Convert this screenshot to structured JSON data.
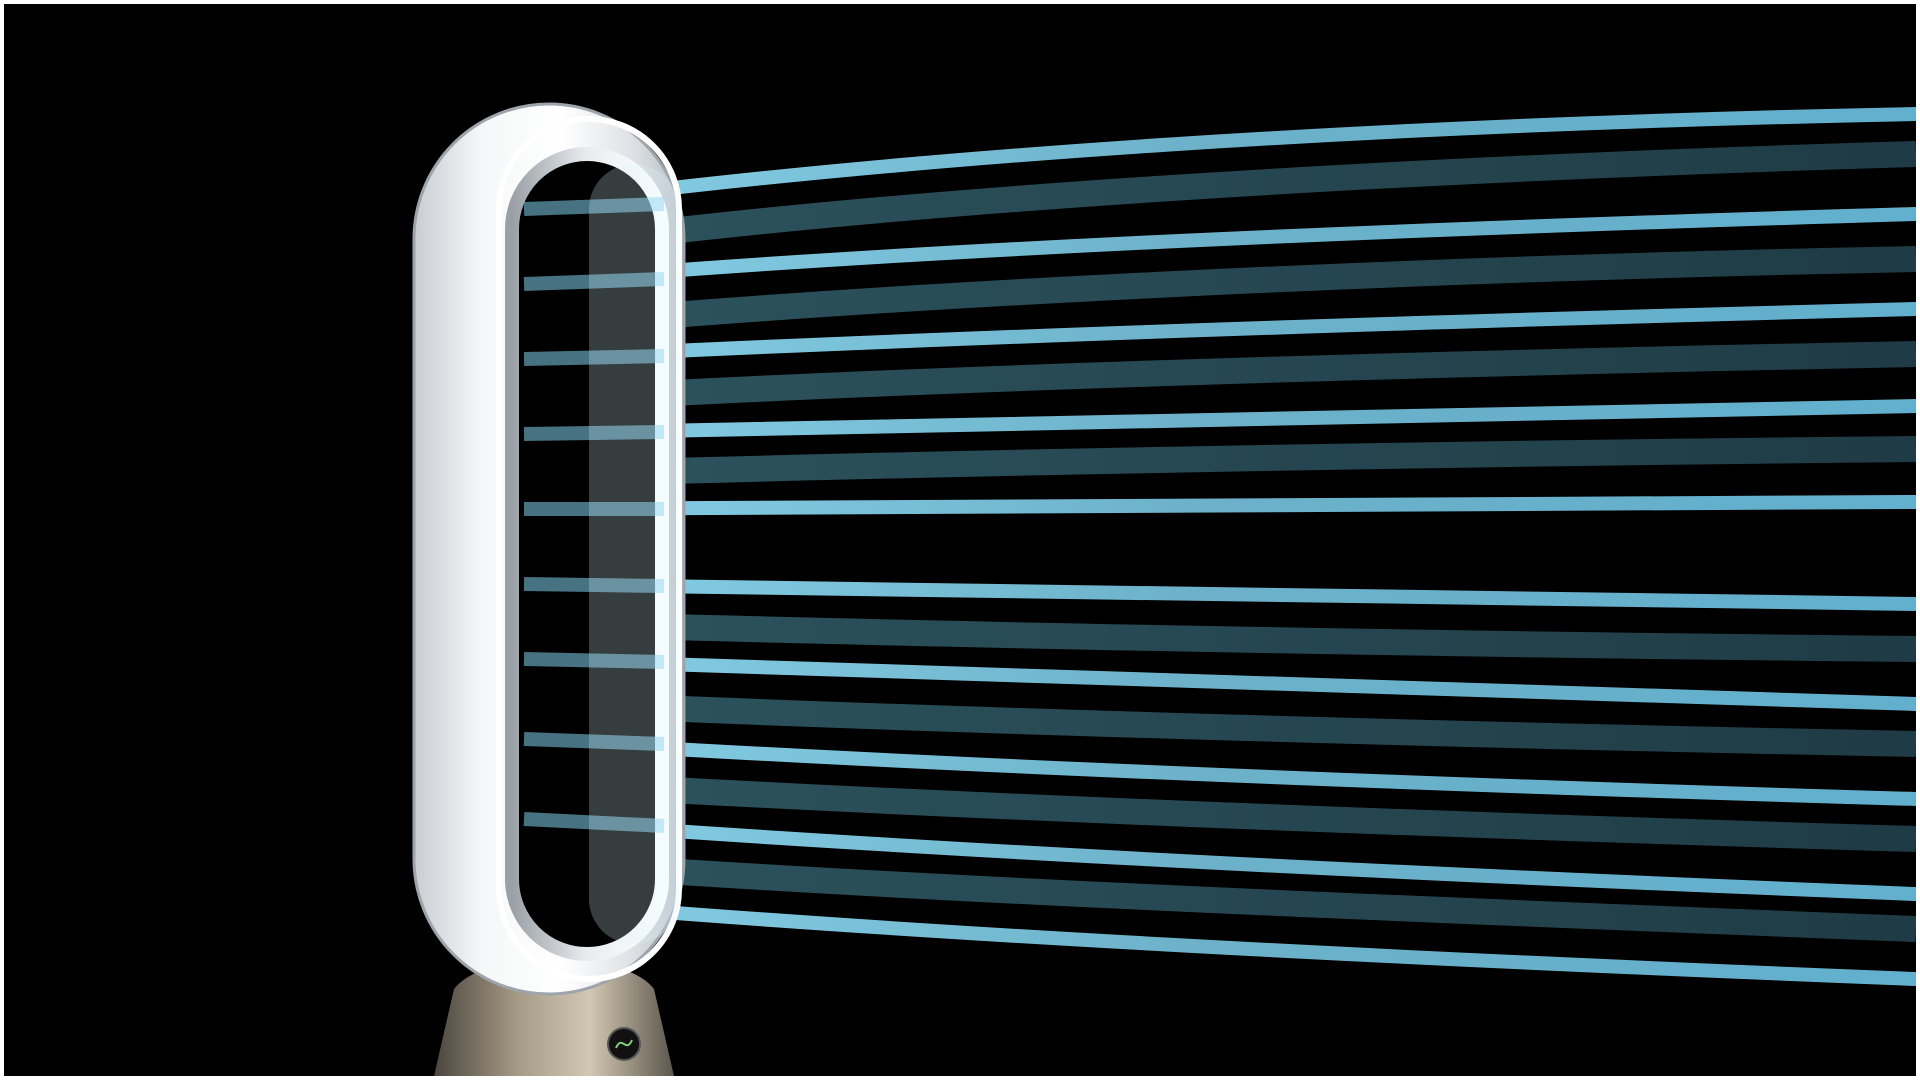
{
  "image": {
    "subject": "fan-airflow-illustration",
    "background_color": "#000000",
    "frame_color": "#ffffff",
    "airflow_color": "#7fd0ec",
    "airflow_shadow_color": "#2f5a66",
    "fan_body_color": "#eef1f4",
    "fan_base_color": "#8b8170"
  }
}
